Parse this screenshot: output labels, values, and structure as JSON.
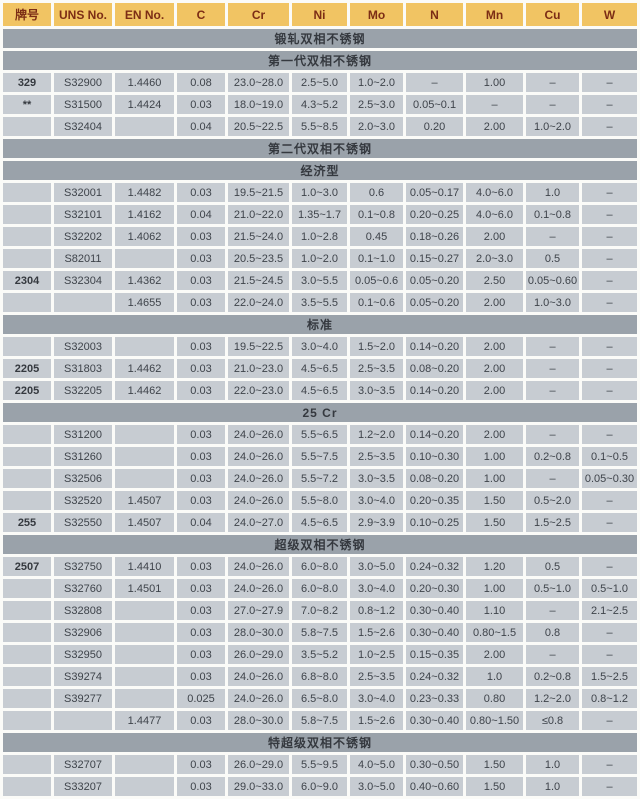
{
  "colors": {
    "header_bg": "#f1c463",
    "header_text": "#7c2d15",
    "section_bg": "#9aa2aa",
    "cell_bg": "#c7ccd2",
    "cell_text": "#3e434a",
    "gap": "#fbfbf8"
  },
  "table": {
    "columns": [
      "牌号",
      "UNS No.",
      "EN No.",
      "C",
      "Cr",
      "Ni",
      "Mo",
      "N",
      "Mn",
      "Cu",
      "W"
    ],
    "rows": [
      {
        "type": "section",
        "label": "锻轧双相不锈钢"
      },
      {
        "type": "section",
        "label": "第一代双相不锈钢"
      },
      {
        "type": "data",
        "cells": [
          "329",
          "S32900",
          "1.4460",
          "0.08",
          "23.0~28.0",
          "2.5~5.0",
          "1.0~2.0",
          "–",
          "1.00",
          "–",
          "–"
        ]
      },
      {
        "type": "data",
        "cells": [
          "**",
          "S31500",
          "1.4424",
          "0.03",
          "18.0~19.0",
          "4.3~5.2",
          "2.5~3.0",
          "0.05~0.1",
          "–",
          "–",
          "–"
        ]
      },
      {
        "type": "data",
        "cells": [
          "",
          "S32404",
          "",
          "0.04",
          "20.5~22.5",
          "5.5~8.5",
          "2.0~3.0",
          "0.20",
          "2.00",
          "1.0~2.0",
          "–"
        ]
      },
      {
        "type": "section",
        "label": "第二代双相不锈钢"
      },
      {
        "type": "section",
        "label": "经济型"
      },
      {
        "type": "data",
        "cells": [
          "",
          "S32001",
          "1.4482",
          "0.03",
          "19.5~21.5",
          "1.0~3.0",
          "0.6",
          "0.05~0.17",
          "4.0~6.0",
          "1.0",
          "–"
        ]
      },
      {
        "type": "data",
        "cells": [
          "",
          "S32101",
          "1.4162",
          "0.04",
          "21.0~22.0",
          "1.35~1.7",
          "0.1~0.8",
          "0.20~0.25",
          "4.0~6.0",
          "0.1~0.8",
          "–"
        ]
      },
      {
        "type": "data",
        "cells": [
          "",
          "S32202",
          "1.4062",
          "0.03",
          "21.5~24.0",
          "1.0~2.8",
          "0.45",
          "0.18~0.26",
          "2.00",
          "–",
          "–"
        ]
      },
      {
        "type": "data",
        "cells": [
          "",
          "S82011",
          "",
          "0.03",
          "20.5~23.5",
          "1.0~2.0",
          "0.1~1.0",
          "0.15~0.27",
          "2.0~3.0",
          "0.5",
          "–"
        ]
      },
      {
        "type": "data",
        "cells": [
          "2304",
          "S32304",
          "1.4362",
          "0.03",
          "21.5~24.5",
          "3.0~5.5",
          "0.05~0.6",
          "0.05~0.20",
          "2.50",
          "0.05~0.60",
          "–"
        ]
      },
      {
        "type": "data",
        "cells": [
          "",
          "",
          "1.4655",
          "0.03",
          "22.0~24.0",
          "3.5~5.5",
          "0.1~0.6",
          "0.05~0.20",
          "2.00",
          "1.0~3.0",
          "–"
        ]
      },
      {
        "type": "section",
        "label": "标准"
      },
      {
        "type": "data",
        "cells": [
          "",
          "S32003",
          "",
          "0.03",
          "19.5~22.5",
          "3.0~4.0",
          "1.5~2.0",
          "0.14~0.20",
          "2.00",
          "–",
          "–"
        ]
      },
      {
        "type": "data",
        "cells": [
          "2205",
          "S31803",
          "1.4462",
          "0.03",
          "21.0~23.0",
          "4.5~6.5",
          "2.5~3.5",
          "0.08~0.20",
          "2.00",
          "–",
          "–"
        ]
      },
      {
        "type": "data",
        "cells": [
          "2205",
          "S32205",
          "1.4462",
          "0.03",
          "22.0~23.0",
          "4.5~6.5",
          "3.0~3.5",
          "0.14~0.20",
          "2.00",
          "–",
          "–"
        ]
      },
      {
        "type": "section",
        "label": "25 Cr"
      },
      {
        "type": "data",
        "cells": [
          "",
          "S31200",
          "",
          "0.03",
          "24.0~26.0",
          "5.5~6.5",
          "1.2~2.0",
          "0.14~0.20",
          "2.00",
          "–",
          "–"
        ]
      },
      {
        "type": "data",
        "cells": [
          "",
          "S31260",
          "",
          "0.03",
          "24.0~26.0",
          "5.5~7.5",
          "2.5~3.5",
          "0.10~0.30",
          "1.00",
          "0.2~0.8",
          "0.1~0.5"
        ]
      },
      {
        "type": "data",
        "cells": [
          "",
          "S32506",
          "",
          "0.03",
          "24.0~26.0",
          "5.5~7.2",
          "3.0~3.5",
          "0.08~0.20",
          "1.00",
          "–",
          "0.05~0.30"
        ]
      },
      {
        "type": "data",
        "cells": [
          "",
          "S32520",
          "1.4507",
          "0.03",
          "24.0~26.0",
          "5.5~8.0",
          "3.0~4.0",
          "0.20~0.35",
          "1.50",
          "0.5~2.0",
          "–"
        ]
      },
      {
        "type": "data",
        "cells": [
          "255",
          "S32550",
          "1.4507",
          "0.04",
          "24.0~27.0",
          "4.5~6.5",
          "2.9~3.9",
          "0.10~0.25",
          "1.50",
          "1.5~2.5",
          "–"
        ]
      },
      {
        "type": "section",
        "label": "超级双相不锈钢"
      },
      {
        "type": "data",
        "cells": [
          "2507",
          "S32750",
          "1.4410",
          "0.03",
          "24.0~26.0",
          "6.0~8.0",
          "3.0~5.0",
          "0.24~0.32",
          "1.20",
          "0.5",
          "–"
        ]
      },
      {
        "type": "data",
        "cells": [
          "",
          "S32760",
          "1.4501",
          "0.03",
          "24.0~26.0",
          "6.0~8.0",
          "3.0~4.0",
          "0.20~0.30",
          "1.00",
          "0.5~1.0",
          "0.5~1.0"
        ]
      },
      {
        "type": "data",
        "cells": [
          "",
          "S32808",
          "",
          "0.03",
          "27.0~27.9",
          "7.0~8.2",
          "0.8~1.2",
          "0.30~0.40",
          "1.10",
          "–",
          "2.1~2.5"
        ]
      },
      {
        "type": "data",
        "cells": [
          "",
          "S32906",
          "",
          "0.03",
          "28.0~30.0",
          "5.8~7.5",
          "1.5~2.6",
          "0.30~0.40",
          "0.80~1.5",
          "0.8",
          "–"
        ]
      },
      {
        "type": "data",
        "cells": [
          "",
          "S32950",
          "",
          "0.03",
          "26.0~29.0",
          "3.5~5.2",
          "1.0~2.5",
          "0.15~0.35",
          "2.00",
          "–",
          "–"
        ]
      },
      {
        "type": "data",
        "cells": [
          "",
          "S39274",
          "",
          "0.03",
          "24.0~26.0",
          "6.8~8.0",
          "2.5~3.5",
          "0.24~0.32",
          "1.0",
          "0.2~0.8",
          "1.5~2.5"
        ]
      },
      {
        "type": "data",
        "cells": [
          "",
          "S39277",
          "",
          "0.025",
          "24.0~26.0",
          "6.5~8.0",
          "3.0~4.0",
          "0.23~0.33",
          "0.80",
          "1.2~2.0",
          "0.8~1.2"
        ]
      },
      {
        "type": "data",
        "cells": [
          "",
          "",
          "1.4477",
          "0.03",
          "28.0~30.0",
          "5.8~7.5",
          "1.5~2.6",
          "0.30~0.40",
          "0.80~1.50",
          "≤0.8",
          "–"
        ]
      },
      {
        "type": "section",
        "label": "特超级双相不锈钢"
      },
      {
        "type": "data",
        "cells": [
          "",
          "S32707",
          "",
          "0.03",
          "26.0~29.0",
          "5.5~9.5",
          "4.0~5.0",
          "0.30~0.50",
          "1.50",
          "1.0",
          "–"
        ]
      },
      {
        "type": "data",
        "cells": [
          "",
          "S33207",
          "",
          "0.03",
          "29.0~33.0",
          "6.0~9.0",
          "3.0~5.0",
          "0.40~0.60",
          "1.50",
          "1.0",
          "–"
        ]
      }
    ]
  }
}
